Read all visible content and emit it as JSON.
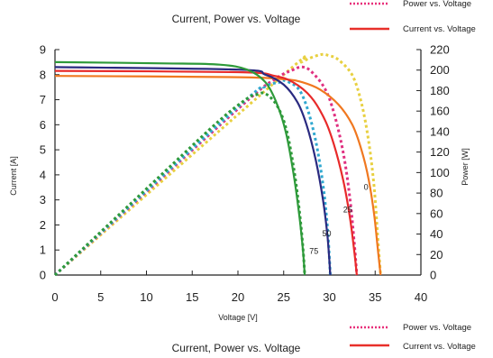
{
  "chart_data": {
    "type": "line",
    "title_top": "Current, Power vs. Voltage",
    "title_bottom": "Current, Power vs. Voltage",
    "xlabel": "Voltage [V]",
    "ylabel_left": "Current [A]",
    "ylabel_right": "Power [W]",
    "xlim": [
      0,
      40
    ],
    "ylim_left": [
      0,
      9
    ],
    "ylim_right": [
      0,
      220
    ],
    "x_ticks": [
      "0",
      "5",
      "10",
      "15",
      "20",
      "25",
      "30",
      "35",
      "40"
    ],
    "y_left_ticks": [
      "0",
      "1",
      "2",
      "3",
      "4",
      "5",
      "6",
      "7",
      "8",
      "9"
    ],
    "y_right_ticks": [
      "0",
      "20",
      "40",
      "60",
      "80",
      "100",
      "120",
      "140",
      "160",
      "180",
      "200",
      "220"
    ],
    "legend_top": [
      {
        "label": "Power vs. Voltage",
        "style": "dotted",
        "color": "#e8307a"
      },
      {
        "label": "Current vs. Voltage",
        "style": "solid",
        "color": "#e8302a"
      }
    ],
    "legend_bottom": [
      {
        "label": "Power vs. Voltage",
        "style": "dotted",
        "color": "#e8307a"
      },
      {
        "label": "Current vs. Voltage",
        "style": "solid",
        "color": "#e8302a"
      }
    ],
    "grid": false,
    "annotations": [
      "0",
      "25",
      "50",
      "75"
    ],
    "series": [
      {
        "label": "0",
        "current_color": "#f07820",
        "power_color": "#e8d040",
        "current": [
          [
            0,
            7.95
          ],
          [
            20,
            7.9
          ],
          [
            25,
            7.82
          ],
          [
            27,
            7.7
          ],
          [
            29,
            7.4
          ],
          [
            31,
            6.8
          ],
          [
            32.5,
            6.0
          ],
          [
            33.5,
            5.0
          ],
          [
            34.3,
            3.8
          ],
          [
            34.9,
            2.4
          ],
          [
            35.3,
            1.0
          ],
          [
            35.6,
            0
          ]
        ],
        "power": [
          [
            0,
            0
          ],
          [
            25,
            195.5
          ],
          [
            27,
            208
          ],
          [
            29,
            215
          ],
          [
            30,
            214
          ],
          [
            31,
            210
          ],
          [
            32.5,
            195
          ],
          [
            33.5,
            168
          ],
          [
            34.3,
            130
          ],
          [
            34.9,
            85
          ],
          [
            35.3,
            35
          ],
          [
            35.6,
            0
          ]
        ]
      },
      {
        "label": "25",
        "current_color": "#e82a2a",
        "power_color": "#e03080",
        "current": [
          [
            0,
            8.15
          ],
          [
            20,
            8.1
          ],
          [
            24,
            7.95
          ],
          [
            26,
            7.7
          ],
          [
            28,
            7.1
          ],
          [
            29.5,
            6.2
          ],
          [
            30.5,
            5.2
          ],
          [
            31.5,
            3.8
          ],
          [
            32.2,
            2.4
          ],
          [
            32.7,
            1.0
          ],
          [
            33,
            0
          ]
        ],
        "power": [
          [
            0,
            0
          ],
          [
            20,
            162
          ],
          [
            24,
            190.8
          ],
          [
            26,
            200.2
          ],
          [
            27,
            203
          ],
          [
            28,
            198.8
          ],
          [
            29.5,
            182
          ],
          [
            30.5,
            158
          ],
          [
            31.5,
            120
          ],
          [
            32.2,
            78
          ],
          [
            32.7,
            33
          ],
          [
            33,
            0
          ]
        ]
      },
      {
        "label": "50",
        "current_color": "#2a2a80",
        "power_color": "#30a8d0",
        "current": [
          [
            0,
            8.3
          ],
          [
            20,
            8.2
          ],
          [
            23,
            8.0
          ],
          [
            25,
            7.6
          ],
          [
            26.5,
            6.9
          ],
          [
            27.5,
            6.0
          ],
          [
            28.5,
            4.6
          ],
          [
            29.3,
            3.0
          ],
          [
            29.8,
            1.5
          ],
          [
            30.1,
            0
          ]
        ],
        "power": [
          [
            0,
            0
          ],
          [
            20,
            164
          ],
          [
            23,
            184
          ],
          [
            24.5,
            188
          ],
          [
            25,
            190
          ],
          [
            26.5,
            182.9
          ],
          [
            27.5,
            165
          ],
          [
            28.5,
            131
          ],
          [
            29.3,
            88
          ],
          [
            29.8,
            45
          ],
          [
            30.1,
            0
          ]
        ]
      },
      {
        "label": "75",
        "current_color": "#2e9a3a",
        "power_color": "#2e9a3a",
        "current": [
          [
            0,
            8.5
          ],
          [
            12,
            8.45
          ],
          [
            18,
            8.4
          ],
          [
            21,
            8.2
          ],
          [
            23,
            7.7
          ],
          [
            24.3,
            6.8
          ],
          [
            25.3,
            5.6
          ],
          [
            26.1,
            4.0
          ],
          [
            26.7,
            2.4
          ],
          [
            27.1,
            1.0
          ],
          [
            27.3,
            0
          ]
        ],
        "power": [
          [
            0,
            0
          ],
          [
            12,
            101
          ],
          [
            18,
            151
          ],
          [
            21,
            172.2
          ],
          [
            22,
            176
          ],
          [
            23,
            177.1
          ],
          [
            24.3,
            165
          ],
          [
            25.3,
            141.7
          ],
          [
            26.1,
            104.4
          ],
          [
            26.7,
            64
          ],
          [
            27.1,
            27
          ],
          [
            27.3,
            0
          ]
        ]
      }
    ]
  }
}
